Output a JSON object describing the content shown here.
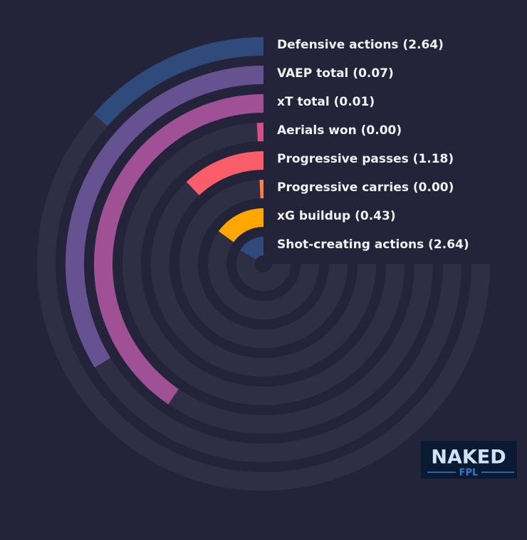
{
  "chart_data": {
    "type": "radial_bar",
    "xlim": [
      0,
      100
    ],
    "track_color": "#2e2f44",
    "series": [
      {
        "name": "Defensive actions (2.64)",
        "color": "#2f4b7c",
        "values": [
          18
        ]
      },
      {
        "name": "VAEP total (0.07)",
        "color": "#665191",
        "values": [
          45
        ]
      },
      {
        "name": "xT total (0.01)",
        "color": "#a05195",
        "values": [
          54
        ]
      },
      {
        "name": "Aerials won (0.00)",
        "color": "#d45087",
        "values": [
          1
        ]
      },
      {
        "name": "Progressive passes (1.18)",
        "color": "#f95d6a",
        "values": [
          16
        ]
      },
      {
        "name": "Progressive carries (0.00)",
        "color": "#ff7c43",
        "values": [
          1
        ]
      },
      {
        "name": "xG buildup (0.43)",
        "color": "#ffa600",
        "values": [
          20
        ]
      },
      {
        "name": "Shot-creating actions (2.64)",
        "color": "#2f4b7c",
        "values": [
          22
        ]
      }
    ]
  },
  "logo": {
    "top": "NAKED",
    "bottom": "FPL"
  }
}
